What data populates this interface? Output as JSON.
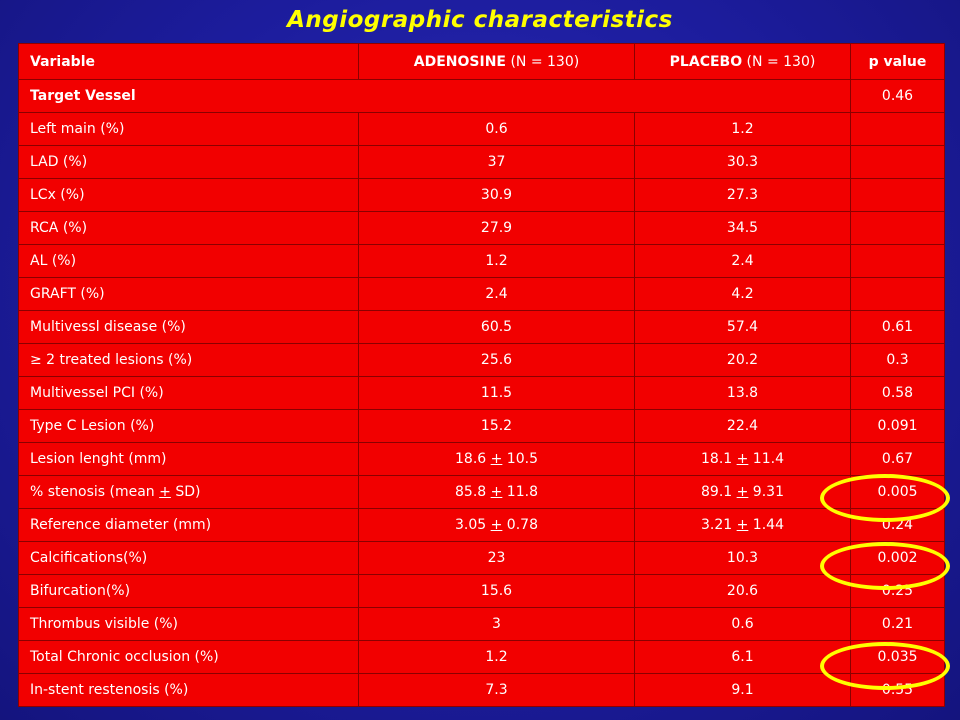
{
  "title": "Angiographic characteristics",
  "header": {
    "variable": "Variable",
    "adenosine": "ADENOSINE",
    "adenosine_n": " (N = 130)",
    "placebo": "PLACEBO",
    "placebo_n": " (N = 130)",
    "pvalue": "p value"
  },
  "target_vessel": {
    "label": "Target Vessel",
    "p": "0.46"
  },
  "vessel_rows": [
    {
      "label": "Left main (%)",
      "adenosine": "0.6",
      "placebo": "1.2"
    },
    {
      "label": "LAD (%)",
      "adenosine": "37",
      "placebo": "30.3"
    },
    {
      "label": "LCx (%)",
      "adenosine": "30.9",
      "placebo": "27.3"
    },
    {
      "label": "RCA (%)",
      "adenosine": "27.9",
      "placebo": "34.5"
    },
    {
      "label": "AL (%)",
      "adenosine": "1.2",
      "placebo": "2.4"
    },
    {
      "label": "GRAFT (%)",
      "adenosine": "2.4",
      "placebo": "4.2"
    }
  ],
  "rows": [
    {
      "label": "Multivessl disease (%)",
      "adenosine": "60.5",
      "placebo": "57.4",
      "p": "0.61"
    },
    {
      "label": "≥ 2 treated lesions (%)",
      "adenosine": "25.6",
      "placebo": "20.2",
      "p": "0.3"
    },
    {
      "label": "Multivessel PCI (%)",
      "adenosine": "11.5",
      "placebo": "13.8",
      "p": "0.58"
    },
    {
      "label": "Type C Lesion (%)",
      "adenosine": "15.2",
      "placebo": "22.4",
      "p": "0.091"
    }
  ],
  "pm_rows": [
    {
      "label_pre": "Lesion lenght (mm)",
      "label_pm": "",
      "label_post": "",
      "a_mean": "18.6 ",
      "a_pm": "+",
      "a_sd": " 10.5",
      "b_mean": "18.1 ",
      "b_pm": "+",
      "b_sd": " 11.4",
      "p": "0.67"
    },
    {
      "label_pre": "% stenosis (mean ",
      "label_pm": "+",
      "label_post": " SD)",
      "a_mean": "85.8 ",
      "a_pm": "+",
      "a_sd": " 11.8",
      "b_mean": "89.1 ",
      "b_pm": "+",
      "b_sd": " 9.31",
      "p": "0.005"
    },
    {
      "label_pre": "Reference diameter (mm)",
      "label_pm": "",
      "label_post": "",
      "a_mean": "3.05 ",
      "a_pm": "+",
      "a_sd": " 0.78",
      "b_mean": "3.21 ",
      "b_pm": "+",
      "b_sd": " 1.44",
      "p": "0.24"
    }
  ],
  "rows2": [
    {
      "label": "Calcifications(%)",
      "adenosine": "23",
      "placebo": "10.3",
      "p": "0.002"
    },
    {
      "label": "Bifurcation(%)",
      "adenosine": "15.6",
      "placebo": "20.6",
      "p": "0.25"
    },
    {
      "label": "Thrombus visible (%)",
      "adenosine": "3",
      "placebo": "0.6",
      "p": "0.21"
    },
    {
      "label": "Total Chronic occlusion (%)",
      "adenosine": "1.2",
      "placebo": "6.1",
      "p": "0.035"
    },
    {
      "label": "In-stent restenosis (%)",
      "adenosine": "7.3",
      "placebo": "9.1",
      "p": "0.55"
    }
  ],
  "colors": {
    "background": "#1c1c9c",
    "title": "#ffff00",
    "table_fill": "#f20000",
    "table_text": "#ffffff",
    "highlight": "#ffff00"
  }
}
